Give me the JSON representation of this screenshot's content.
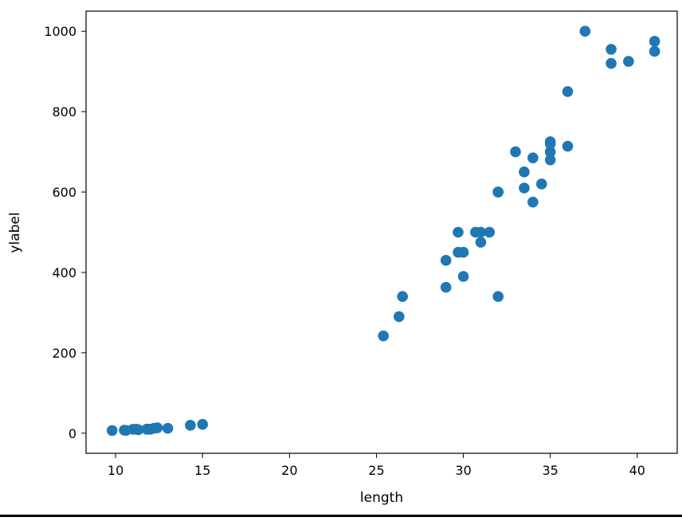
{
  "chart_data": {
    "type": "scatter",
    "title": "",
    "xlabel": "length",
    "ylabel": "ylabel",
    "xlim": [
      8.3,
      42.3
    ],
    "ylim": [
      -50,
      1050
    ],
    "x_ticks": [
      10,
      15,
      20,
      25,
      30,
      35,
      40
    ],
    "y_ticks": [
      0,
      200,
      400,
      600,
      800,
      1000
    ],
    "grid": false,
    "legend": null,
    "marker_color": "#1f77b4",
    "points": [
      {
        "x": 9.8,
        "y": 6.7
      },
      {
        "x": 10.5,
        "y": 7.5
      },
      {
        "x": 10.6,
        "y": 7.0
      },
      {
        "x": 11.0,
        "y": 9.7
      },
      {
        "x": 11.2,
        "y": 9.8
      },
      {
        "x": 11.3,
        "y": 8.7
      },
      {
        "x": 11.8,
        "y": 10.0
      },
      {
        "x": 11.8,
        "y": 9.9
      },
      {
        "x": 12.0,
        "y": 9.8
      },
      {
        "x": 12.2,
        "y": 12.2
      },
      {
        "x": 12.4,
        "y": 13.4
      },
      {
        "x": 13.0,
        "y": 12.2
      },
      {
        "x": 14.3,
        "y": 19.7
      },
      {
        "x": 15.0,
        "y": 21.9
      },
      {
        "x": 25.4,
        "y": 242.0
      },
      {
        "x": 26.3,
        "y": 290.0
      },
      {
        "x": 26.5,
        "y": 340.0
      },
      {
        "x": 29.0,
        "y": 363.0
      },
      {
        "x": 29.0,
        "y": 430.0
      },
      {
        "x": 29.7,
        "y": 450.0
      },
      {
        "x": 29.7,
        "y": 500.0
      },
      {
        "x": 30.0,
        "y": 390.0
      },
      {
        "x": 30.0,
        "y": 450.0
      },
      {
        "x": 30.7,
        "y": 500.0
      },
      {
        "x": 31.0,
        "y": 475.0
      },
      {
        "x": 31.0,
        "y": 500.0
      },
      {
        "x": 31.5,
        "y": 500.0
      },
      {
        "x": 32.0,
        "y": 340.0
      },
      {
        "x": 32.0,
        "y": 600.0
      },
      {
        "x": 32.0,
        "y": 600.0
      },
      {
        "x": 33.0,
        "y": 700.0
      },
      {
        "x": 33.5,
        "y": 610.0
      },
      {
        "x": 33.5,
        "y": 650.0
      },
      {
        "x": 34.0,
        "y": 575.0
      },
      {
        "x": 34.0,
        "y": 685.0
      },
      {
        "x": 34.5,
        "y": 620.0
      },
      {
        "x": 35.0,
        "y": 680.0
      },
      {
        "x": 35.0,
        "y": 700.0
      },
      {
        "x": 35.0,
        "y": 725.0
      },
      {
        "x": 35.0,
        "y": 720.0
      },
      {
        "x": 36.0,
        "y": 714.0
      },
      {
        "x": 36.0,
        "y": 850.0
      },
      {
        "x": 37.0,
        "y": 1000.0
      },
      {
        "x": 38.5,
        "y": 920.0
      },
      {
        "x": 38.5,
        "y": 955.0
      },
      {
        "x": 39.5,
        "y": 925.0
      },
      {
        "x": 41.0,
        "y": 975.0
      },
      {
        "x": 41.0,
        "y": 950.0
      }
    ]
  }
}
